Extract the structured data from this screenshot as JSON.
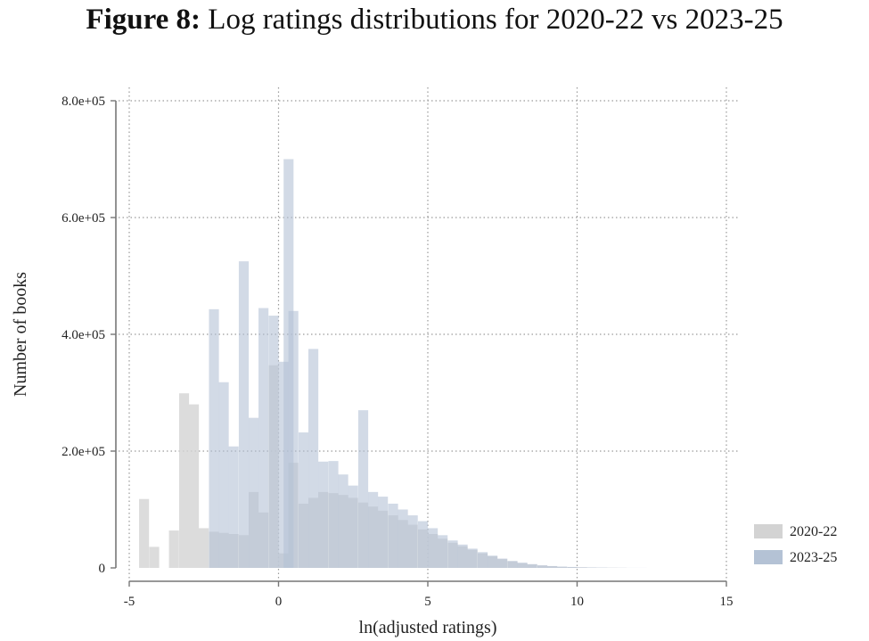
{
  "title": {
    "prefix": "Figure 8:",
    "text": "Log ratings distributions for 2020-22 vs 2023-25"
  },
  "colors": {
    "series_2020_22": "#d3d3d3",
    "series_2023_25": "#b4c2d5",
    "grid": "#9a9a9a",
    "axis": "#777777"
  },
  "chart_data": {
    "type": "bar",
    "subtype": "overlaid histogram",
    "xlabel": "ln(adjusted ratings)",
    "ylabel": "Number of books",
    "xlim": [
      -5,
      15
    ],
    "ylim": [
      0,
      800000
    ],
    "x_ticks": [
      -5,
      0,
      5,
      10,
      15
    ],
    "x_tick_labels": [
      "-5",
      "0",
      "5",
      "10",
      "15"
    ],
    "y_ticks": [
      0,
      200000,
      400000,
      600000,
      800000
    ],
    "y_tick_labels": [
      "0",
      "2.0e+05",
      "4.0e+05",
      "6.0e+05",
      "8.0e+05"
    ],
    "grid": true,
    "legend_position": "bottom-right",
    "bin_width": 0.333,
    "series": [
      {
        "name": "2020-22",
        "color": "#d3d3d3",
        "bins": [
          {
            "x0": -4.67,
            "value": 118000
          },
          {
            "x0": -4.33,
            "value": 36000
          },
          {
            "x0": -3.67,
            "value": 64000
          },
          {
            "x0": -3.33,
            "value": 299000
          },
          {
            "x0": -3.0,
            "value": 280000
          },
          {
            "x0": -2.67,
            "value": 68000
          },
          {
            "x0": -2.33,
            "value": 62000
          },
          {
            "x0": -2.0,
            "value": 60000
          },
          {
            "x0": -1.67,
            "value": 58000
          },
          {
            "x0": -1.33,
            "value": 56000
          },
          {
            "x0": -1.0,
            "value": 130000
          },
          {
            "x0": -0.67,
            "value": 95000
          },
          {
            "x0": -0.33,
            "value": 347000
          },
          {
            "x0": 0.0,
            "value": 25000
          },
          {
            "x0": 0.33,
            "value": 180000
          },
          {
            "x0": 0.67,
            "value": 110000
          },
          {
            "x0": 1.0,
            "value": 120000
          },
          {
            "x0": 1.33,
            "value": 130000
          },
          {
            "x0": 1.67,
            "value": 128000
          },
          {
            "x0": 2.0,
            "value": 125000
          },
          {
            "x0": 2.33,
            "value": 120000
          },
          {
            "x0": 2.67,
            "value": 112000
          },
          {
            "x0": 3.0,
            "value": 105000
          },
          {
            "x0": 3.33,
            "value": 98000
          },
          {
            "x0": 3.67,
            "value": 90000
          },
          {
            "x0": 4.0,
            "value": 82000
          },
          {
            "x0": 4.33,
            "value": 74000
          },
          {
            "x0": 4.67,
            "value": 66000
          },
          {
            "x0": 5.0,
            "value": 58000
          },
          {
            "x0": 5.33,
            "value": 50000
          },
          {
            "x0": 5.67,
            "value": 43000
          },
          {
            "x0": 6.0,
            "value": 37000
          },
          {
            "x0": 6.33,
            "value": 31000
          },
          {
            "x0": 6.67,
            "value": 25000
          },
          {
            "x0": 7.0,
            "value": 20000
          },
          {
            "x0": 7.33,
            "value": 15000
          },
          {
            "x0": 7.67,
            "value": 11000
          },
          {
            "x0": 8.0,
            "value": 8000
          },
          {
            "x0": 8.33,
            "value": 6000
          },
          {
            "x0": 8.67,
            "value": 4000
          },
          {
            "x0": 9.0,
            "value": 3000
          },
          {
            "x0": 9.33,
            "value": 2000
          },
          {
            "x0": 9.67,
            "value": 1500
          },
          {
            "x0": 10.0,
            "value": 1000
          },
          {
            "x0": 10.33,
            "value": 700
          },
          {
            "x0": 10.67,
            "value": 500
          },
          {
            "x0": 11.0,
            "value": 300
          },
          {
            "x0": 11.33,
            "value": 200
          }
        ]
      },
      {
        "name": "2023-25",
        "color": "#b4c2d5",
        "bins": [
          {
            "x0": -2.33,
            "value": 443000
          },
          {
            "x0": -2.0,
            "value": 318000
          },
          {
            "x0": -1.67,
            "value": 208000
          },
          {
            "x0": -1.33,
            "value": 525000
          },
          {
            "x0": -1.0,
            "value": 257000
          },
          {
            "x0": -0.67,
            "value": 445000
          },
          {
            "x0": -0.33,
            "value": 432000
          },
          {
            "x0": 0.0,
            "value": 353000
          },
          {
            "x0": 0.17,
            "value": 700000
          },
          {
            "x0": 0.33,
            "value": 440000
          },
          {
            "x0": 0.67,
            "value": 232000
          },
          {
            "x0": 1.0,
            "value": 375000
          },
          {
            "x0": 1.33,
            "value": 182000
          },
          {
            "x0": 1.67,
            "value": 183000
          },
          {
            "x0": 2.0,
            "value": 160000
          },
          {
            "x0": 2.33,
            "value": 141000
          },
          {
            "x0": 2.67,
            "value": 270000
          },
          {
            "x0": 3.0,
            "value": 130000
          },
          {
            "x0": 3.33,
            "value": 122000
          },
          {
            "x0": 3.67,
            "value": 110000
          },
          {
            "x0": 4.0,
            "value": 100000
          },
          {
            "x0": 4.33,
            "value": 90000
          },
          {
            "x0": 4.67,
            "value": 80000
          },
          {
            "x0": 5.0,
            "value": 68000
          },
          {
            "x0": 5.33,
            "value": 56000
          },
          {
            "x0": 5.67,
            "value": 47000
          },
          {
            "x0": 6.0,
            "value": 40000
          },
          {
            "x0": 6.33,
            "value": 33000
          },
          {
            "x0": 6.67,
            "value": 27000
          },
          {
            "x0": 7.0,
            "value": 21000
          },
          {
            "x0": 7.33,
            "value": 16000
          },
          {
            "x0": 7.67,
            "value": 12000
          },
          {
            "x0": 8.0,
            "value": 9000
          },
          {
            "x0": 8.33,
            "value": 6500
          },
          {
            "x0": 8.67,
            "value": 4500
          },
          {
            "x0": 9.0,
            "value": 3200
          },
          {
            "x0": 9.33,
            "value": 2200
          },
          {
            "x0": 9.67,
            "value": 1600
          },
          {
            "x0": 10.0,
            "value": 1100
          },
          {
            "x0": 10.33,
            "value": 800
          },
          {
            "x0": 10.67,
            "value": 550
          },
          {
            "x0": 11.0,
            "value": 350
          },
          {
            "x0": 11.33,
            "value": 250
          },
          {
            "x0": 11.67,
            "value": 150
          },
          {
            "x0": 12.0,
            "value": 100
          }
        ]
      }
    ]
  }
}
